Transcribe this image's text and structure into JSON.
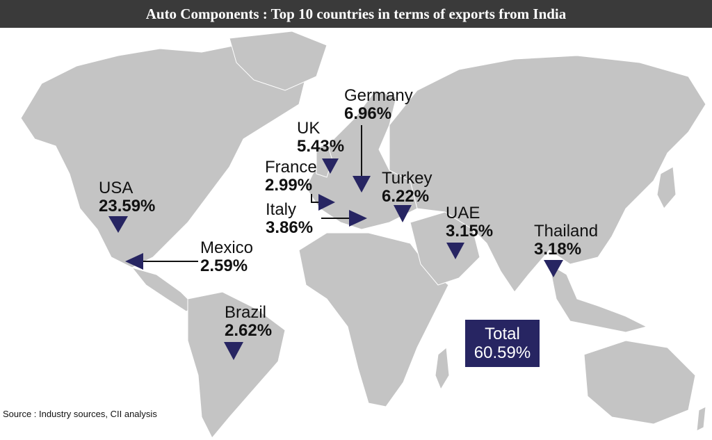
{
  "title": "Auto Components : Top 10 countries in terms of exports from India",
  "colors": {
    "land": "#c4c4c4",
    "marker": "#272562",
    "title_bg": "#3a3a3a"
  },
  "countries": [
    {
      "name": "USA",
      "share": "23.59%"
    },
    {
      "name": "Mexico",
      "share": "2.59%"
    },
    {
      "name": "Brazil",
      "share": "2.62%"
    },
    {
      "name": "UK",
      "share": "5.43%"
    },
    {
      "name": "France",
      "share": "2.99%"
    },
    {
      "name": "Italy",
      "share": "3.86%"
    },
    {
      "name": "Germany",
      "share": "6.96%"
    },
    {
      "name": "Turkey",
      "share": "6.22%"
    },
    {
      "name": "UAE",
      "share": "3.15%"
    },
    {
      "name": "Thailand",
      "share": "3.18%"
    }
  ],
  "total": {
    "label": "Total",
    "value": "60.59%"
  },
  "source": "Source : Industry sources, CII analysis"
}
